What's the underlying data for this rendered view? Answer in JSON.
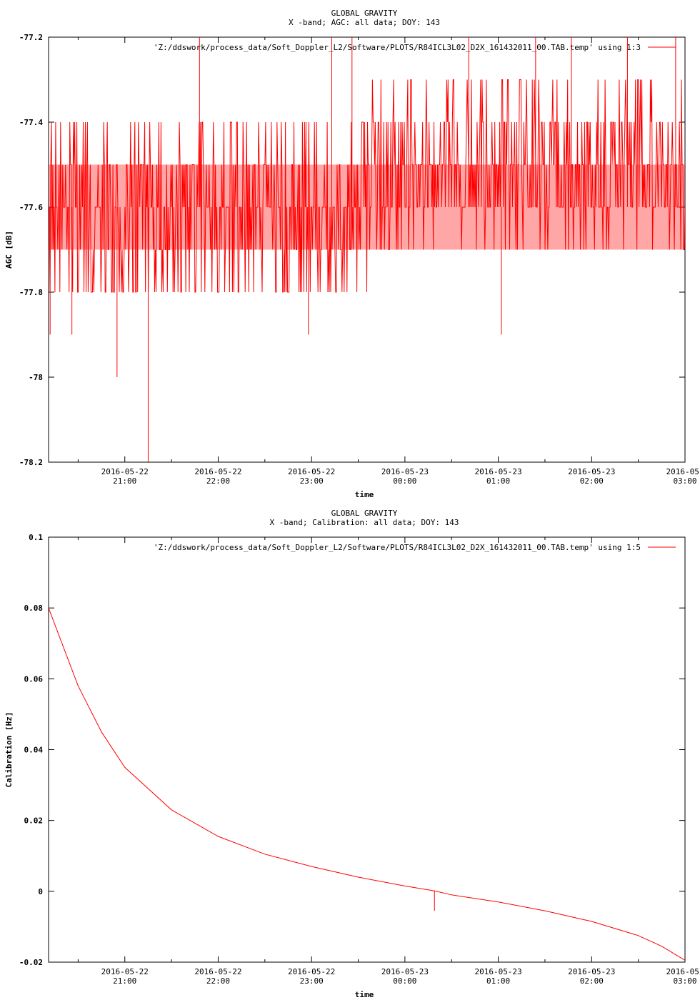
{
  "chart_data": [
    {
      "type": "line",
      "title": "GLOBAL GRAVITY",
      "subtitle": "X -band; AGC: all data; DOY: 143",
      "xlabel": "time",
      "ylabel": "AGC [dB]",
      "xlim": [
        "2016-05-22 20:11",
        "2016-05-23 03:00"
      ],
      "ylim": [
        -78.2,
        -77.2
      ],
      "yticks": [
        "-77.2",
        "-77.4",
        "-77.6",
        "-77.8",
        "-78",
        "-78.2"
      ],
      "xtick_dates": [
        "2016-05-22",
        "2016-05-22",
        "2016-05-22",
        "2016-05-23",
        "2016-05-23",
        "2016-05-23",
        "2016-05-"
      ],
      "xtick_times": [
        "21:00",
        "22:00",
        "23:00",
        "00:00",
        "01:00",
        "02:00",
        "03:00"
      ],
      "series": [
        {
          "name": "'Z:/ddswork/process_data/Soft_Doppler_L2/Software/PLOTS/R84ICL3L02_D2X_161432011_00.TAB.temp' using 1:3",
          "color": "#ff0000",
          "band_low": -77.7,
          "band_high": -77.5,
          "values_early": [
            -77.6,
            -77.7,
            -77.8,
            -77.5,
            -77.6,
            -77.7,
            -77.4,
            -77.6,
            -77.8,
            -77.5
          ],
          "values_late": [
            -77.5,
            -77.6,
            -77.4,
            -77.5,
            -77.3,
            -77.6,
            -77.5,
            -77.4,
            -77.6,
            -77.7
          ],
          "spikes": [
            {
              "t": "20:12",
              "y": -77.9
            },
            {
              "t": "20:26",
              "y": -77.9
            },
            {
              "t": "20:55",
              "y": -78.0
            },
            {
              "t": "21:15",
              "y": -78.2
            },
            {
              "t": "21:48",
              "y": -77.2
            },
            {
              "t": "22:58",
              "y": -77.9
            },
            {
              "t": "23:13",
              "y": -77.2
            },
            {
              "t": "23:26",
              "y": -77.2
            },
            {
              "t": "00:41",
              "y": -77.2
            },
            {
              "t": "01:02",
              "y": -77.9
            },
            {
              "t": "01:24",
              "y": -77.2
            },
            {
              "t": "01:47",
              "y": -77.2
            },
            {
              "t": "02:23",
              "y": -77.2
            },
            {
              "t": "02:54",
              "y": -77.2
            }
          ]
        }
      ]
    },
    {
      "type": "line",
      "title": "GLOBAL GRAVITY",
      "subtitle": "X -band; Calibration: all data; DOY: 143",
      "xlabel": "time",
      "ylabel": "Calibration [Hz]",
      "xlim": [
        "2016-05-22 20:11",
        "2016-05-23 03:00"
      ],
      "ylim": [
        -0.02,
        0.1
      ],
      "yticks": [
        "0.1",
        "0.08",
        "0.06",
        "0.04",
        "0.02",
        "0",
        "-0.02"
      ],
      "xtick_dates": [
        "2016-05-22",
        "2016-05-22",
        "2016-05-22",
        "2016-05-23",
        "2016-05-23",
        "2016-05-23",
        "2016-05-"
      ],
      "xtick_times": [
        "21:00",
        "22:00",
        "23:00",
        "00:00",
        "01:00",
        "02:00",
        "03:00"
      ],
      "series": [
        {
          "name": "'Z:/ddswork/process_data/Soft_Doppler_L2/Software/PLOTS/R84ICL3L02_D2X_161432011_00.TAB.temp' using 1:5",
          "color": "#ff0000",
          "x": [
            "20:11",
            "20:30",
            "20:45",
            "21:00",
            "21:30",
            "22:00",
            "22:30",
            "23:00",
            "23:30",
            "00:00",
            "00:19",
            "00:30",
            "01:00",
            "01:30",
            "02:00",
            "02:30",
            "02:45",
            "03:00"
          ],
          "y": [
            0.08,
            0.058,
            0.045,
            0.035,
            0.023,
            0.0155,
            0.0105,
            0.007,
            0.004,
            0.0015,
            0.0001,
            -0.001,
            -0.003,
            -0.0055,
            -0.0085,
            -0.0125,
            -0.0155,
            -0.0195
          ],
          "glitch": {
            "t": "00:19",
            "y": -0.0055
          }
        }
      ]
    }
  ]
}
